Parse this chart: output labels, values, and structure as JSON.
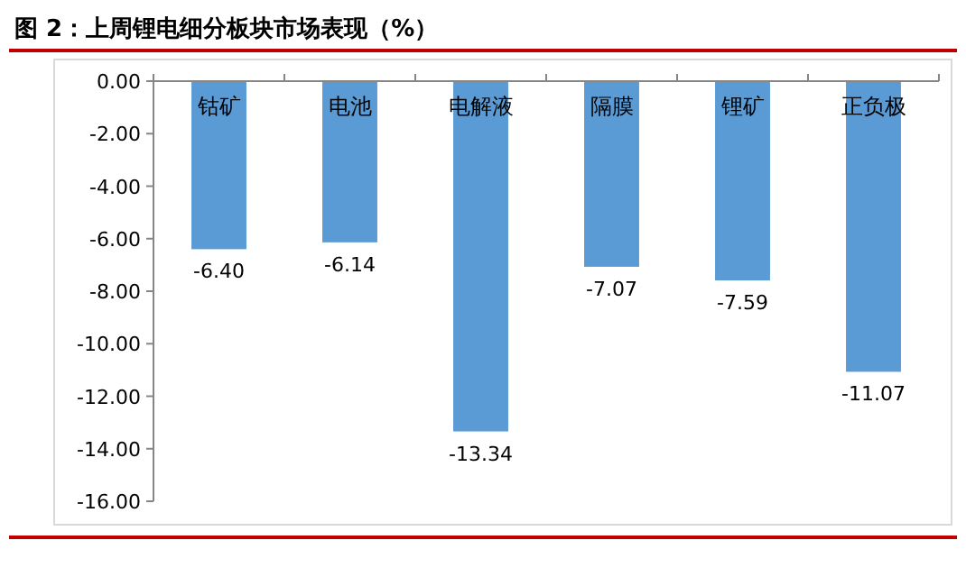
{
  "chart_data": {
    "type": "bar",
    "title": "图 2：上周锂电细分板块市场表现（%）",
    "categories": [
      "钴矿",
      "电池",
      "电解液",
      "隔膜",
      "锂矿",
      "正负极"
    ],
    "values": [
      -6.4,
      -6.14,
      -13.34,
      -7.07,
      -7.59,
      -11.07
    ],
    "value_labels": [
      "-6.40",
      "-6.14",
      "-13.34",
      "-7.07",
      "-7.59",
      "-11.07"
    ],
    "color": "#5b9bd5",
    "ylim": [
      -16,
      0
    ],
    "yticks": [
      {
        "value": 0,
        "label": "0.00"
      },
      {
        "value": -2,
        "label": "-2.00"
      },
      {
        "value": -4,
        "label": "-4.00"
      },
      {
        "value": -6,
        "label": "-6.00"
      },
      {
        "value": -8,
        "label": "-8.00"
      },
      {
        "value": -10,
        "label": "-10.00"
      },
      {
        "value": -12,
        "label": "-12.00"
      },
      {
        "value": -14,
        "label": "-14.00"
      },
      {
        "value": -16,
        "label": "-16.00"
      }
    ],
    "grid": false
  }
}
